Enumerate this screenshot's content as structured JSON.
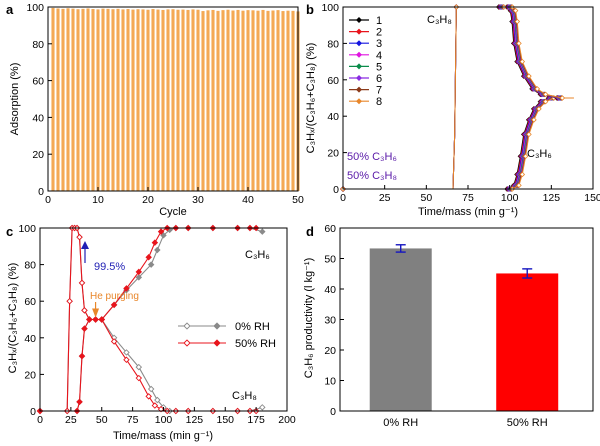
{
  "colors": {
    "bar_orange": "#F4A954",
    "dashed_blue": "#1f1fb4",
    "annot_orange": "#e8862a",
    "legend_purple": "#5a1aa8",
    "grey_series": "#8a8a8a",
    "red_series": "#e8141c"
  },
  "chart_data": [
    {
      "panel": "a",
      "type": "bar",
      "xlabel": "Cycle",
      "ylabel": "Adsorption (%)",
      "xlim": [
        0,
        50
      ],
      "ylim": [
        0,
        100
      ],
      "xticks": [
        "0",
        "10",
        "20",
        "30",
        "40",
        "50"
      ],
      "yticks": [
        "0",
        "20",
        "40",
        "60",
        "80",
        "100"
      ],
      "x": [
        1,
        2,
        3,
        4,
        5,
        6,
        7,
        8,
        9,
        10,
        11,
        12,
        13,
        14,
        15,
        16,
        17,
        18,
        19,
        20,
        21,
        22,
        23,
        24,
        25,
        26,
        27,
        28,
        29,
        30,
        31,
        32,
        33,
        34,
        35,
        36,
        37,
        38,
        39,
        40,
        41,
        42,
        43,
        44,
        45,
        46,
        47,
        48,
        49,
        50
      ],
      "values": [
        99.5,
        99.2,
        99,
        99.3,
        99.1,
        98.8,
        99,
        99.2,
        98.9,
        98.7,
        99.1,
        99,
        98.8,
        99,
        98.7,
        98.9,
        98.6,
        98.8,
        98.7,
        98.5,
        98.9,
        98.6,
        98.4,
        98.7,
        98.8,
        98.5,
        98.6,
        98.4,
        98.7,
        98.5,
        97.8,
        98.2,
        98.4,
        97.9,
        98.3,
        98.5,
        98.1,
        98.4,
        98,
        98.3,
        98.2,
        98,
        98.4,
        97.9,
        98.1,
        98.3,
        97.8,
        98,
        97.9,
        97.6
      ],
      "grid": false
    },
    {
      "panel": "b",
      "type": "line",
      "xlabel": "Time/mass (min g⁻¹)",
      "ylabel": "C₃Hₓ/(C₃H₆+C₃H₈) (%)",
      "xlim": [
        0,
        150
      ],
      "ylim": [
        0,
        100
      ],
      "xticks": [
        "0",
        "25",
        "50",
        "75",
        "100",
        "125",
        "150"
      ],
      "yticks": [
        "0",
        "20",
        "40",
        "60",
        "80",
        "100"
      ],
      "legend": [
        "1",
        "2",
        "3",
        "4",
        "5",
        "6",
        "7",
        "8"
      ],
      "legend_position": "top-left",
      "series_colors": [
        "#000000",
        "#e8141c",
        "#1515e0",
        "#e014e0",
        "#0a8c4a",
        "#8a2be2",
        "#8b3a1a",
        "#e8862a"
      ],
      "c3h8_curve": {
        "x": [
          0,
          66,
          67,
          68,
          75,
          85,
          95,
          100,
          102,
          103,
          104,
          106,
          110,
          115,
          120,
          130
        ],
        "y": [
          0,
          0,
          30,
          100,
          100,
          100,
          100,
          100,
          98,
          92,
          80,
          70,
          62,
          55,
          52,
          50
        ]
      },
      "c3h6_curve": {
        "x": [
          0,
          60,
          80,
          100,
          104,
          106,
          108,
          110,
          113,
          116,
          120,
          125,
          130,
          137
        ],
        "y": [
          0,
          0,
          0,
          0,
          2,
          8,
          18,
          30,
          38,
          44,
          48,
          50,
          50,
          50
        ]
      },
      "labels": {
        "c3h8": "C₃H₈",
        "c3h6": "C₃H₆",
        "feed_1": "50% C₃H₆",
        "feed_2": "50% C₃H₈"
      }
    },
    {
      "panel": "c",
      "type": "line",
      "xlabel": "Time/mass (min g⁻¹)",
      "ylabel": "C₃Hₓ/(C₃H₆+C₃H₈) (%)",
      "xlim": [
        0,
        200
      ],
      "ylim": [
        0,
        100
      ],
      "xticks": [
        "0",
        "25",
        "50",
        "75",
        "100",
        "125",
        "150",
        "175",
        "200"
      ],
      "yticks": [
        "0",
        "20",
        "40",
        "60",
        "80",
        "100"
      ],
      "legend": [
        "0% RH",
        "50% RH"
      ],
      "legend_position": "center-right",
      "series": [
        {
          "name": "0% RH",
          "color": "#8a8a8a",
          "c3h6": {
            "x": [
              0,
              30,
              32,
              34,
              36,
              40,
              45,
              50,
              60,
              70,
              80,
              90,
              95,
              100,
              105,
              110,
              120,
              140,
              160,
              170,
              180
            ],
            "y": [
              0,
              0,
              5,
              30,
              45,
              50,
              50,
              50,
              58,
              66,
              73,
              80,
              88,
              96,
              99,
              100,
              100,
              100,
              100,
              100,
              98
            ]
          },
          "c3h8": {
            "x": [
              0,
              22,
              24,
              26,
              28,
              30,
              32,
              34,
              36,
              40,
              45,
              50,
              60,
              70,
              80,
              90,
              95,
              100,
              105,
              110,
              120,
              140,
              160,
              170,
              180
            ],
            "y": [
              0,
              0,
              60,
              100,
              100,
              100,
              95,
              70,
              55,
              50,
              50,
              50,
              40,
              32,
              24,
              12,
              6,
              2,
              0,
              0,
              0,
              0,
              0,
              0,
              2
            ]
          }
        },
        {
          "name": "50% RH",
          "color": "#e8141c",
          "c3h6": {
            "x": [
              0,
              30,
              32,
              34,
              36,
              40,
              45,
              50,
              60,
              70,
              80,
              88,
              93,
              98,
              103,
              110,
              120,
              140,
              160,
              170,
              175
            ],
            "y": [
              0,
              0,
              5,
              30,
              45,
              50,
              50,
              50,
              58,
              67,
              76,
              84,
              92,
              98,
              100,
              100,
              100,
              100,
              100,
              100,
              100
            ]
          },
          "c3h8": {
            "x": [
              0,
              22,
              24,
              26,
              28,
              30,
              32,
              34,
              36,
              40,
              45,
              50,
              60,
              70,
              80,
              88,
              93,
              98,
              103,
              110,
              120,
              140,
              160,
              170,
              175
            ],
            "y": [
              0,
              0,
              60,
              100,
              100,
              100,
              95,
              70,
              55,
              50,
              50,
              50,
              38,
              28,
              18,
              8,
              3,
              1,
              0,
              0,
              0,
              0,
              0,
              0,
              0
            ]
          }
        }
      ],
      "reference_line": {
        "y": 100,
        "label": "99.5%"
      },
      "annotations": {
        "he_purging": "He purging",
        "he_purging_x": 45,
        "c3h6": "C₃H₆",
        "c3h8": "C₃H₈"
      }
    },
    {
      "panel": "d",
      "type": "bar",
      "xlabel": "",
      "ylabel": "C₃H₆ productivity (l kg⁻¹)",
      "categories": [
        "0% RH",
        "50% RH"
      ],
      "values": [
        53.3,
        45.1
      ],
      "errors": [
        1.2,
        1.5
      ],
      "colors": [
        "#808080",
        "#ff0000"
      ],
      "ylim": [
        0,
        60
      ],
      "yticks": [
        "0",
        "10",
        "20",
        "30",
        "40",
        "50",
        "60"
      ]
    }
  ],
  "panel_labels": [
    "a",
    "b",
    "c",
    "d"
  ]
}
